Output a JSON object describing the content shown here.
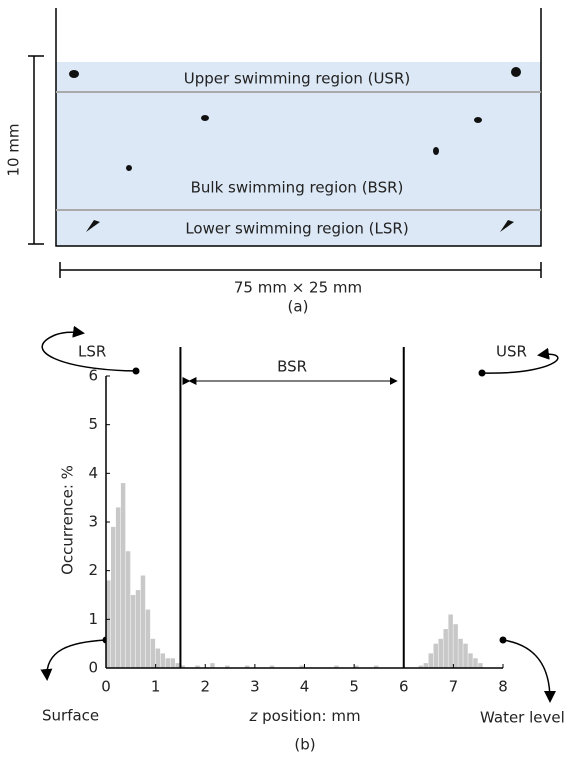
{
  "diagram": {
    "regions": [
      "Upper swimming region (USR)",
      "Bulk swimming region (BSR)",
      "Lower swimming region (LSR)"
    ],
    "height_label": "10 mm",
    "width_label": "75 mm × 25 mm",
    "caption": "(a)"
  },
  "chart_data": {
    "type": "histogram",
    "ylabel": "Occurrence: %",
    "xlabel_var": "z",
    "xlabel": "position: mm",
    "caption": "(b)",
    "bins": [
      0,
      0.1,
      0.2,
      0.3,
      0.4,
      0.5,
      0.6,
      0.7,
      0.8,
      0.9,
      1.0,
      1.1,
      1.2,
      1.3,
      1.4,
      1.5,
      1.6,
      1.7,
      1.8,
      1.9,
      2.0,
      2.1,
      2.2,
      2.3,
      2.4,
      2.5,
      2.6,
      2.7,
      2.8,
      2.9,
      3.0,
      3.1,
      3.2,
      3.3,
      3.4,
      3.5,
      3.6,
      3.7,
      3.8,
      3.9,
      4.0,
      4.1,
      4.2,
      4.3,
      4.4,
      4.5,
      4.6,
      4.7,
      4.8,
      4.9,
      5.0,
      5.1,
      5.2,
      5.3,
      5.4,
      5.5,
      5.6,
      5.7,
      5.8,
      5.9,
      6.0,
      6.1,
      6.2,
      6.3,
      6.4,
      6.5,
      6.6,
      6.7,
      6.8,
      6.9,
      7.0,
      7.1,
      7.2,
      7.3,
      7.4,
      7.5,
      7.6
    ],
    "values": [
      1.8,
      2.9,
      3.3,
      3.8,
      2.4,
      1.5,
      1.6,
      1.9,
      1.2,
      0.6,
      0.4,
      0.3,
      0.2,
      0.2,
      0.1,
      0.05,
      0,
      0,
      0.05,
      0,
      0,
      0.1,
      0,
      0,
      0.05,
      0,
      0,
      0,
      0.05,
      0,
      0,
      0,
      0,
      0.05,
      0,
      0,
      0,
      0,
      0,
      0.05,
      0,
      0,
      0,
      0,
      0,
      0,
      0.05,
      0,
      0,
      0,
      0.05,
      0,
      0,
      0,
      0.05,
      0,
      0,
      0,
      0,
      0,
      0,
      0,
      0,
      0.05,
      0.1,
      0.3,
      0.5,
      0.6,
      0.8,
      1.1,
      0.9,
      0.6,
      0.5,
      0.3,
      0.2,
      0.1
    ],
    "color": "#c8c8c8",
    "xlim": [
      0,
      8
    ],
    "ylim": [
      0,
      6
    ],
    "xticks": [
      0,
      1,
      2,
      3,
      4,
      5,
      6,
      7,
      8
    ],
    "yticks": [
      0,
      1,
      2,
      3,
      4,
      5,
      6
    ],
    "region_lines": [
      1.5,
      6
    ],
    "annotations": {
      "bsr": "BSR",
      "lsr": "LSR",
      "usr": "USR",
      "surface": "Surface",
      "water_level": "Water level"
    }
  }
}
